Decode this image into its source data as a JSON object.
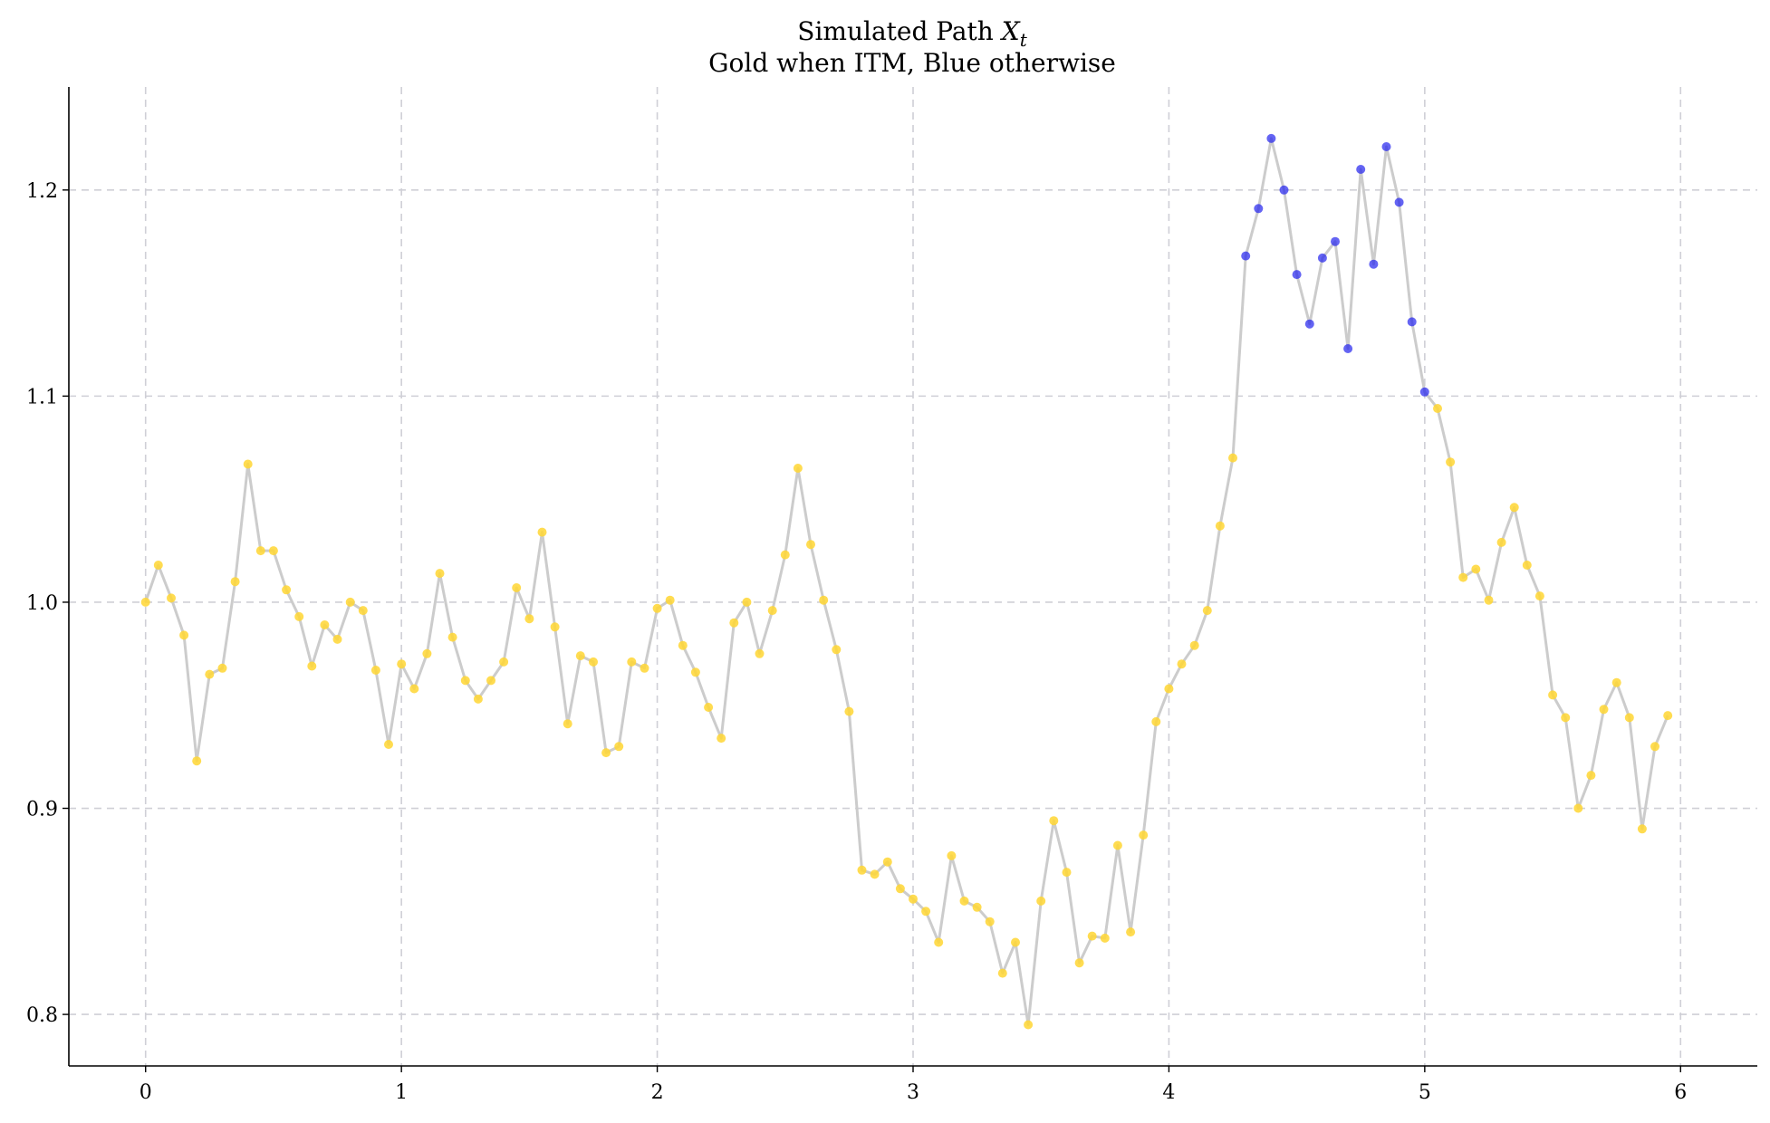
{
  "chart_data": {
    "type": "line",
    "title": "Simulated Path X_t",
    "title_line1_text": "Simulated Path ",
    "title_line1_var": "X",
    "title_line1_sub": "t",
    "subtitle": "Gold when ITM, Blue otherwise",
    "xlabel": "",
    "ylabel": "",
    "xlim": [
      -0.3,
      6.3
    ],
    "ylim": [
      0.775,
      1.25
    ],
    "xticks": [
      0,
      1,
      2,
      3,
      4,
      5,
      6
    ],
    "xtick_labels": [
      "0",
      "1",
      "2",
      "3",
      "4",
      "5",
      "6"
    ],
    "yticks": [
      0.8,
      0.9,
      1.0,
      1.1,
      1.2
    ],
    "ytick_labels": [
      "0.8",
      "0.9",
      "1.0",
      "1.1",
      "1.2"
    ],
    "grid": true,
    "x_step": 0.05,
    "colors": {
      "line": "#cccccc",
      "itm": "#ffd633",
      "otm": "#2222ee"
    },
    "itm_rule": "gold when value < 1.1, blue otherwise",
    "series": [
      {
        "values": [
          1.0,
          1.018,
          1.002,
          0.984,
          0.923,
          0.965,
          0.968,
          1.01,
          1.067,
          1.025,
          1.025,
          1.006,
          0.993,
          0.969,
          0.989,
          0.982,
          1.0,
          0.996,
          0.967,
          0.931,
          0.97,
          0.958,
          0.975,
          1.014,
          0.983,
          0.962,
          0.953,
          0.962,
          0.971,
          1.007,
          0.992,
          1.034,
          0.988,
          0.941,
          0.974,
          0.971,
          0.927,
          0.93,
          0.971,
          0.968,
          0.997,
          1.001,
          0.979,
          0.966,
          0.949,
          0.934,
          0.99,
          1.0,
          0.975,
          0.996,
          1.023,
          1.065,
          1.028,
          1.001,
          0.977,
          0.947,
          0.87,
          0.868,
          0.874,
          0.861,
          0.856,
          0.85,
          0.835,
          0.877,
          0.855,
          0.852,
          0.845,
          0.82,
          0.835,
          0.795,
          0.855,
          0.894,
          0.869,
          0.825,
          0.838,
          0.837,
          0.882,
          0.84,
          0.887,
          0.942,
          0.958,
          0.97,
          0.979,
          0.996,
          1.037,
          1.07,
          1.168,
          1.191,
          1.225,
          1.2,
          1.159,
          1.135,
          1.167,
          1.175,
          1.123,
          1.21,
          1.164,
          1.221,
          1.194,
          1.136,
          1.102,
          1.094,
          1.068,
          1.012,
          1.016,
          1.001,
          1.029,
          1.046,
          1.018,
          1.003,
          0.955,
          0.944,
          0.9,
          0.916,
          0.948,
          0.961,
          0.944,
          0.89,
          0.93,
          0.945
        ]
      }
    ]
  }
}
